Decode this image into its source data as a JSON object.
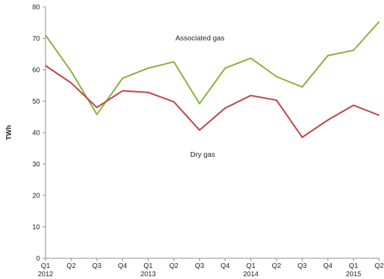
{
  "chart_data": {
    "type": "line",
    "title": "",
    "xlabel": "",
    "ylabel": "TWh",
    "ylim": [
      0,
      80
    ],
    "yticks": [
      0,
      10,
      20,
      30,
      40,
      50,
      60,
      70,
      80
    ],
    "categories": [
      "Q1",
      "Q2",
      "Q3",
      "Q4",
      "Q1",
      "Q2",
      "Q3",
      "Q4",
      "Q1",
      "Q2",
      "Q3",
      "Q4",
      "Q1",
      "Q2"
    ],
    "year_labels": [
      {
        "index": 0,
        "label": "2012"
      },
      {
        "index": 4,
        "label": "2013"
      },
      {
        "index": 8,
        "label": "2014"
      },
      {
        "index": 12,
        "label": "2015"
      }
    ],
    "grid": false,
    "legend": "none",
    "series": [
      {
        "name": "Associated gas",
        "color": "#8db33f",
        "values": [
          71,
          59.5,
          45.8,
          57.3,
          60.5,
          62.5,
          49.2,
          60.5,
          63.7,
          57.8,
          54.5,
          64.5,
          66.2,
          75.3
        ]
      },
      {
        "name": "Dry gas",
        "color": "#c0484a",
        "values": [
          61.3,
          55.8,
          48,
          53.3,
          52.8,
          49.8,
          40.8,
          47.8,
          51.8,
          50.3,
          38.5,
          44,
          48.7,
          45.5
        ]
      }
    ],
    "annotations": [
      {
        "text": "Associated gas",
        "series": 0
      },
      {
        "text": "Dry gas",
        "series": 1
      }
    ]
  }
}
